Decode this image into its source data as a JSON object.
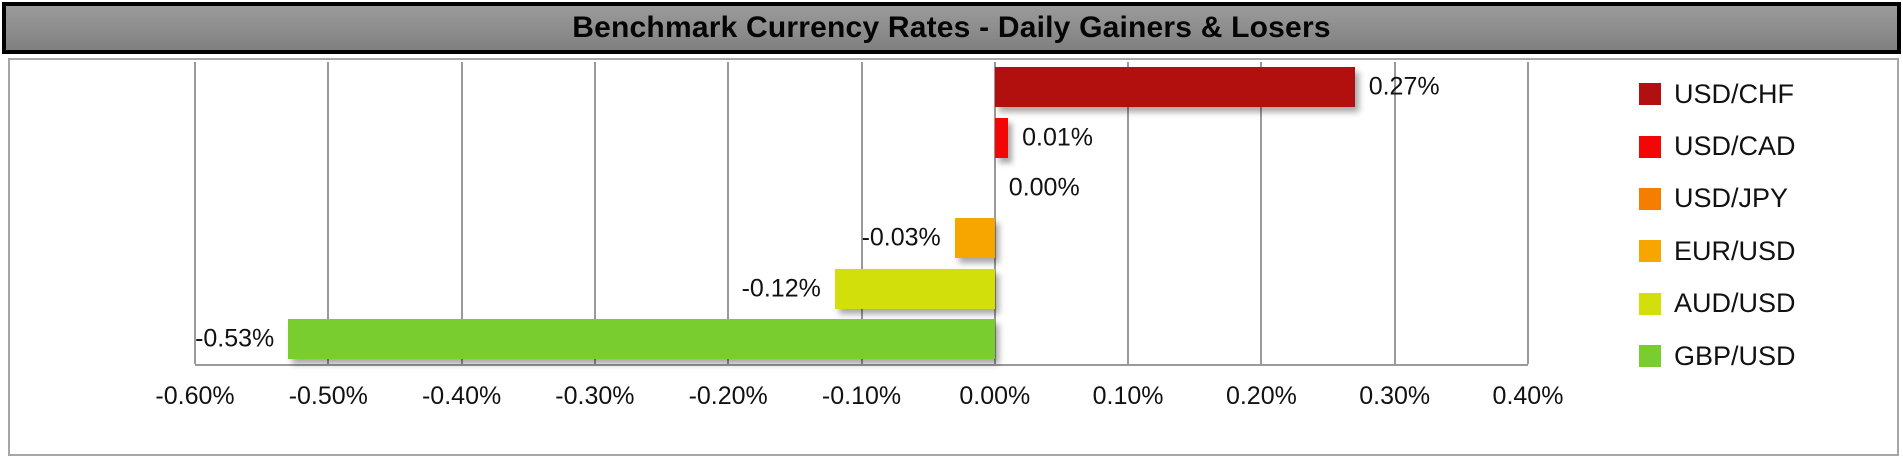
{
  "title": "Benchmark Currency Rates - Daily Gainers & Losers",
  "colors": {
    "title_bg": "#8C8C8C",
    "title_border": "#000000",
    "title_text": "#050505",
    "chart_border": "#A6A6A6",
    "gridline": "#9A9A9A",
    "background": "#FFFFFF",
    "label_text": "#111111"
  },
  "chart_data": {
    "type": "bar",
    "orientation": "horizontal",
    "title": "Benchmark Currency Rates - Daily Gainers & Losers",
    "xlabel": "",
    "ylabel": "",
    "xlim": [
      -0.6,
      0.4
    ],
    "grid": true,
    "legend_position": "right",
    "categories": [
      "USD/CHF",
      "USD/CAD",
      "USD/JPY",
      "EUR/USD",
      "AUD/USD",
      "GBP/USD"
    ],
    "values": [
      0.27,
      0.01,
      0.0,
      -0.03,
      -0.12,
      -0.53
    ],
    "value_labels": [
      "0.27%",
      "0.01%",
      "0.00%",
      "-0.03%",
      "-0.12%",
      "-0.53%"
    ],
    "series_colors": [
      "#B20F0F",
      "#F20606",
      "#F57E00",
      "#F7A600",
      "#D2DF0B",
      "#79CD2F"
    ],
    "x_ticks": [
      {
        "value": -0.6,
        "label": "-0.60%"
      },
      {
        "value": -0.5,
        "label": "-0.50%"
      },
      {
        "value": -0.4,
        "label": "-0.40%"
      },
      {
        "value": -0.3,
        "label": "-0.30%"
      },
      {
        "value": -0.2,
        "label": "-0.20%"
      },
      {
        "value": -0.1,
        "label": "-0.10%"
      },
      {
        "value": 0.0,
        "label": "0.00%"
      },
      {
        "value": 0.1,
        "label": "0.10%"
      },
      {
        "value": 0.2,
        "label": "0.20%"
      },
      {
        "value": 0.3,
        "label": "0.30%"
      },
      {
        "value": 0.4,
        "label": "0.40%"
      }
    ]
  }
}
